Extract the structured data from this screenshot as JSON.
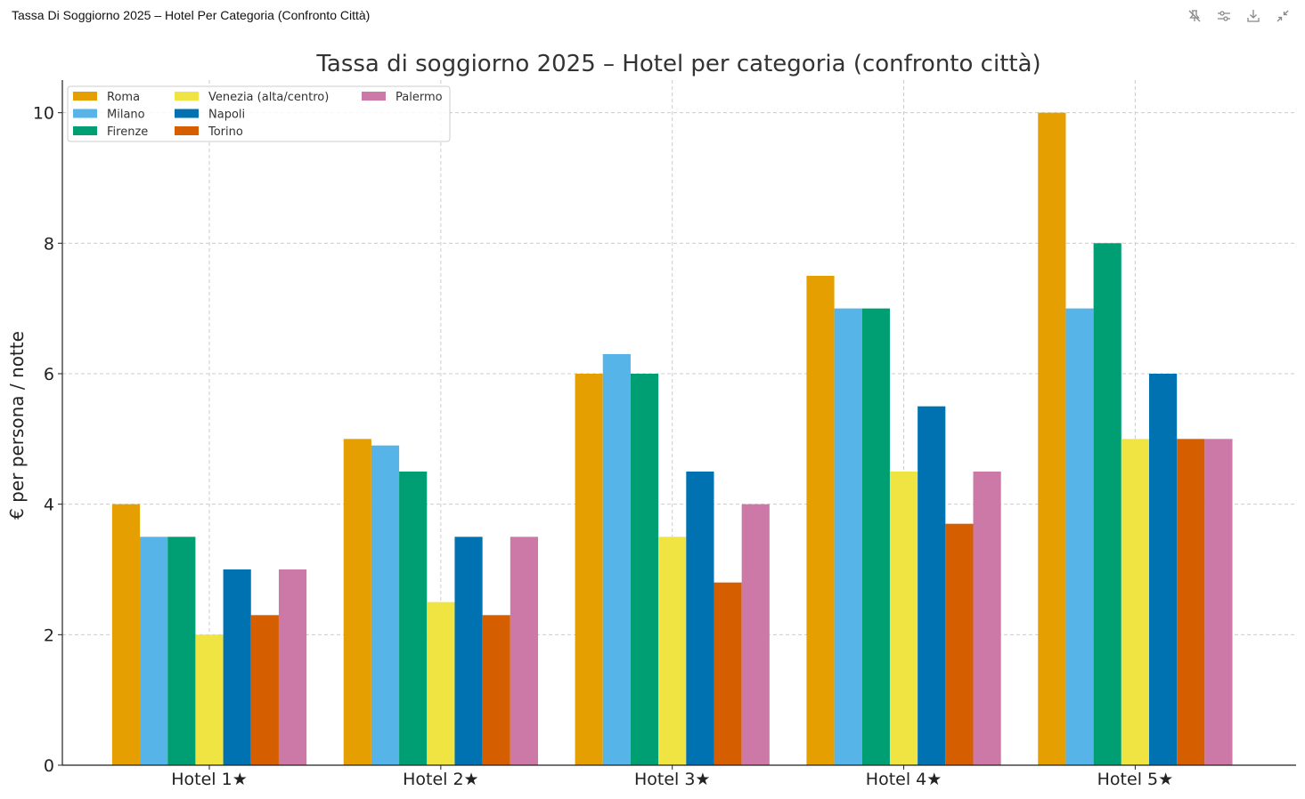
{
  "window": {
    "title": "Tassa Di Soggiorno 2025 – Hotel Per Categoria (Confronto Città)"
  },
  "toolbar": {
    "buttons": [
      {
        "name": "unpin-button",
        "icon": "pin-off-icon"
      },
      {
        "name": "filter-button",
        "icon": "sliders-icon"
      },
      {
        "name": "download-button",
        "icon": "download-icon"
      },
      {
        "name": "collapse-button",
        "icon": "collapse-icon"
      }
    ]
  },
  "chart_data": {
    "type": "bar",
    "title": "Tassa di soggiorno 2025 – Hotel per categoria (confronto città)",
    "xlabel": "",
    "ylabel": "€ per persona / notte",
    "categories": [
      "Hotel 1★",
      "Hotel 2★",
      "Hotel 3★",
      "Hotel 4★",
      "Hotel 5★"
    ],
    "ylim": [
      0,
      10.5
    ],
    "yticks": [
      0,
      2,
      4,
      6,
      8,
      10
    ],
    "grid": true,
    "legend_position": "top-left",
    "series": [
      {
        "name": "Roma",
        "color": "#E69F00",
        "values": [
          4,
          5,
          6,
          7.5,
          10
        ]
      },
      {
        "name": "Milano",
        "color": "#56B4E9",
        "values": [
          3.5,
          4.9,
          6.3,
          7,
          7
        ]
      },
      {
        "name": "Firenze",
        "color": "#009E73",
        "values": [
          3.5,
          4.5,
          6,
          7,
          8
        ]
      },
      {
        "name": "Venezia (alta/centro)",
        "color": "#F0E442",
        "values": [
          2,
          2.5,
          3.5,
          4.5,
          5
        ]
      },
      {
        "name": "Napoli",
        "color": "#0072B2",
        "values": [
          3,
          3.5,
          4.5,
          5.5,
          6
        ]
      },
      {
        "name": "Torino",
        "color": "#D55E00",
        "values": [
          2.3,
          2.3,
          2.8,
          3.7,
          5
        ]
      },
      {
        "name": "Palermo",
        "color": "#CC79A7",
        "values": [
          3,
          3.5,
          4,
          4.5,
          5
        ]
      }
    ]
  }
}
